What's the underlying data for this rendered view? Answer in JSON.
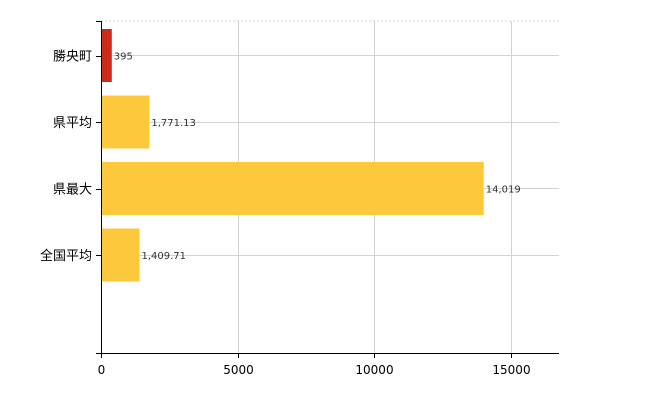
{
  "chart_data": {
    "type": "bar",
    "orientation": "horizontal",
    "title": "",
    "xlabel": "",
    "ylabel": "",
    "categories": [
      "勝央町",
      "県平均",
      "県最大",
      "全国平均"
    ],
    "values": [
      395,
      1771.13,
      14019,
      1409.71
    ],
    "value_labels": [
      "395",
      "1,771.13",
      "14,019",
      "1,409.71"
    ],
    "bar_colors": [
      "#cc2a1a",
      "#fcc83c",
      "#fcc83c",
      "#fcc83c"
    ],
    "xlim": [
      0,
      16800
    ],
    "x_ticks": [
      0,
      5000,
      10000,
      15000
    ],
    "x_tick_labels": [
      "0",
      "5000",
      "10000",
      "15000"
    ],
    "grid": true,
    "legend": "none"
  }
}
